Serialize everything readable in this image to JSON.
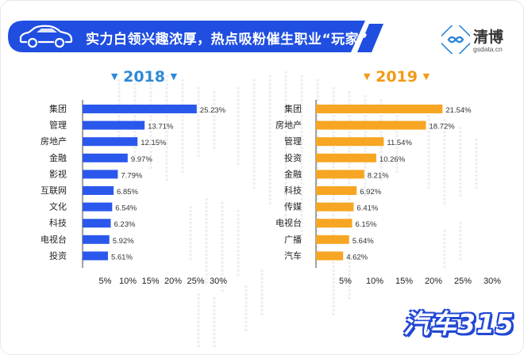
{
  "header": {
    "title": "实力白领兴趣浓厚，热点吸粉催生职业“玩家”",
    "brand_color": "#1f4ee0"
  },
  "logo": {
    "name": "清博",
    "url_text": "gsdata.cn"
  },
  "watermark": {
    "text": "汽车315"
  },
  "chart_data": [
    {
      "type": "bar",
      "orientation": "horizontal",
      "title": "2018",
      "color": "#2b58ec",
      "title_color": "#2e8ad6",
      "categories": [
        "集团",
        "管理",
        "房地产",
        "金融",
        "影视",
        "互联网",
        "文化",
        "科技",
        "电视台",
        "投资"
      ],
      "values": [
        25.23,
        13.71,
        12.15,
        9.97,
        7.79,
        6.85,
        6.54,
        6.23,
        5.92,
        5.61
      ],
      "value_labels": [
        "25.23%",
        "13.71%",
        "12.15%",
        "9.97%",
        "7.79%",
        "6.85%",
        "6.54%",
        "6.23%",
        "5.92%",
        "5.61%"
      ],
      "xticks": [
        "5%",
        "10%",
        "15%",
        "20%",
        "25%",
        "30%"
      ],
      "xlim": [
        0,
        30
      ],
      "grid": false
    },
    {
      "type": "bar",
      "orientation": "horizontal",
      "title": "2019",
      "color": "#f6a623",
      "title_color": "#f39a17",
      "categories": [
        "集团",
        "房地产",
        "管理",
        "投资",
        "金融",
        "科技",
        "传媒",
        "电视台",
        "广播",
        "汽车"
      ],
      "values": [
        21.54,
        18.72,
        11.54,
        10.26,
        8.21,
        6.92,
        6.41,
        6.15,
        5.64,
        4.62
      ],
      "value_labels": [
        "21.54%",
        "18.72%",
        "11.54%",
        "10.26%",
        "8.21%",
        "6.92%",
        "6.41%",
        "6.15%",
        "5.64%",
        "4.62%"
      ],
      "xticks": [
        "5%",
        "10%",
        "15%",
        "20%",
        "25%",
        "30%"
      ],
      "xlim": [
        0,
        30
      ],
      "grid": false
    }
  ]
}
